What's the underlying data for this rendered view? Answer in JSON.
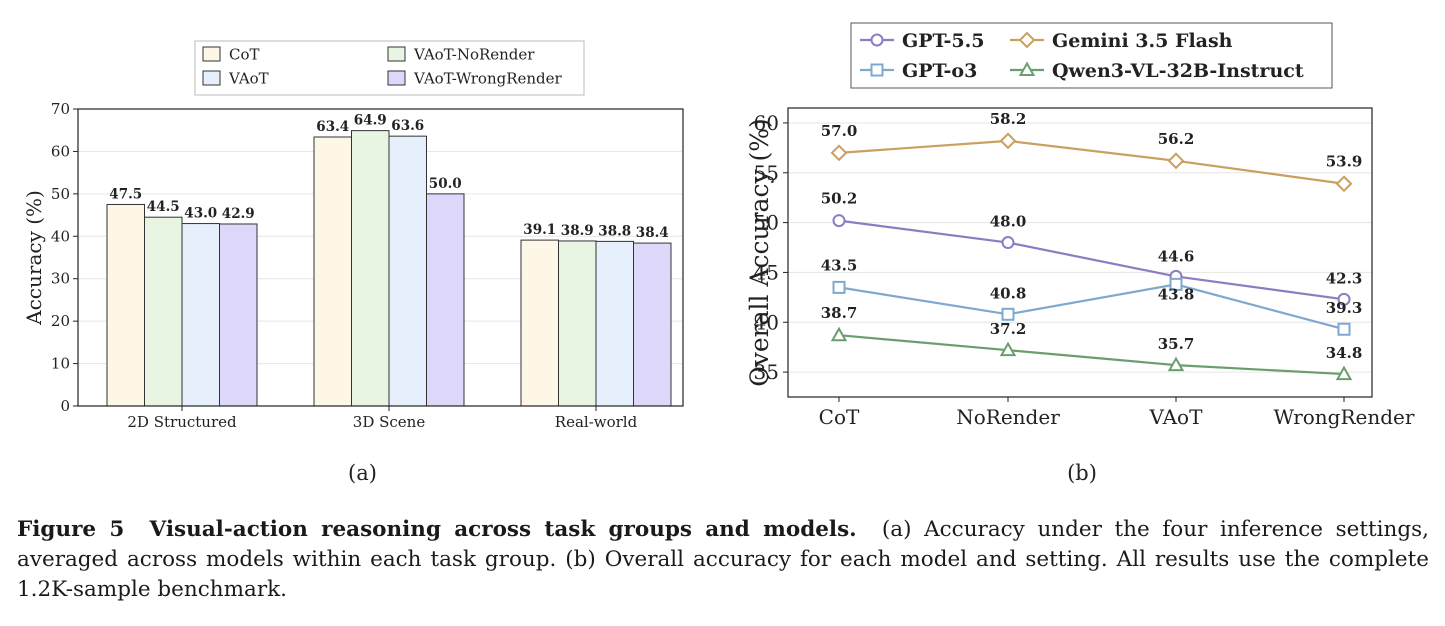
{
  "chart_data": [
    {
      "type": "bar",
      "panel_label": "(a)",
      "ylabel": "Accuracy (%)",
      "ylim": [
        0,
        70
      ],
      "yticks": [
        0,
        10,
        20,
        30,
        40,
        50,
        60,
        70
      ],
      "grid": "y",
      "legend_position": "top",
      "categories": [
        "2D Structured",
        "3D Scene",
        "Real-world"
      ],
      "series": [
        {
          "name": "CoT",
          "values": [
            47.5,
            63.4,
            39.1
          ],
          "value_labels": [
            "47.5",
            "63.4",
            "39.1"
          ],
          "color": "#fef6e6"
        },
        {
          "name": "VAoT-NoRender",
          "values": [
            44.5,
            64.9,
            38.9
          ],
          "value_labels": [
            "44.5",
            "64.9",
            "38.9"
          ],
          "color": "#e8f5e2"
        },
        {
          "name": "VAoT",
          "values": [
            43.0,
            63.6,
            38.8
          ],
          "value_labels": [
            "43.0",
            "63.6",
            "38.8"
          ],
          "color": "#e6f0fc"
        },
        {
          "name": "VAoT-WrongRender",
          "values": [
            42.9,
            50.0,
            38.4
          ],
          "value_labels": [
            "42.9",
            "50.0",
            "38.4"
          ],
          "color": "#ddd8fa"
        }
      ]
    },
    {
      "type": "line",
      "panel_label": "(b)",
      "ylabel": "Overall Accuracy (%)",
      "ylim": [
        32.5,
        61.5
      ],
      "yticks": [
        35,
        40,
        45,
        50,
        55,
        60
      ],
      "grid": "y",
      "legend_position": "top",
      "x": [
        "CoT",
        "NoRender",
        "VAoT",
        "WrongRender"
      ],
      "series": [
        {
          "name": "GPT-5.5",
          "values": [
            50.2,
            48.0,
            44.6,
            42.3
          ],
          "value_labels": [
            "50.2",
            "48.0",
            "44.6",
            "42.3"
          ],
          "color": "#8e7cc3",
          "marker": "circle"
        },
        {
          "name": "Gemini 3.5 Flash",
          "values": [
            57.0,
            58.2,
            56.2,
            53.9
          ],
          "value_labels": [
            "57.0",
            "58.2",
            "56.2",
            "53.9"
          ],
          "color": "#c9a060",
          "marker": "diamond"
        },
        {
          "name": "GPT-o3",
          "values": [
            43.5,
            40.8,
            43.8,
            39.3
          ],
          "value_labels": [
            "43.5",
            "40.8",
            "43.8",
            "39.3"
          ],
          "color": "#7fa8cf",
          "marker": "square"
        },
        {
          "name": "Qwen3-VL-32B-Instruct",
          "values": [
            38.7,
            37.2,
            35.7,
            34.8
          ],
          "value_labels": [
            "38.7",
            "37.2",
            "35.7",
            "34.8"
          ],
          "color": "#6b9e6f",
          "marker": "triangle"
        }
      ]
    }
  ],
  "caption": {
    "label": "Figure 5",
    "title": "Visual-action reasoning across task groups and models.",
    "text": "(a) Accuracy under the four inference settings, averaged across models within each task group. (b) Overall accuracy for each model and setting. All results use the complete 1.2K-sample benchmark."
  }
}
